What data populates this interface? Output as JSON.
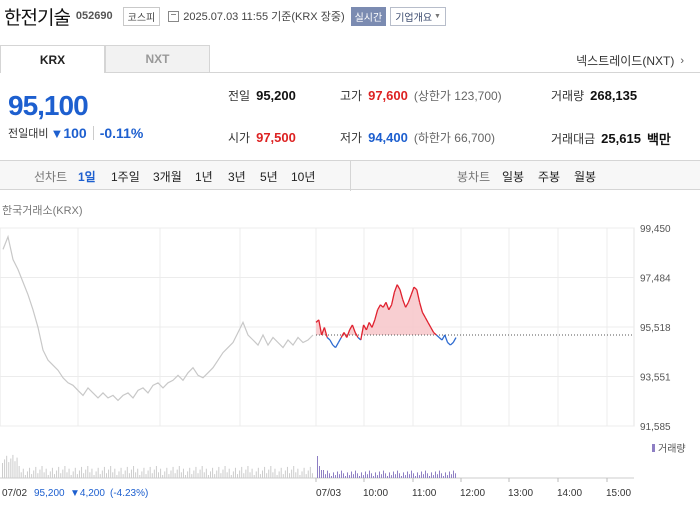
{
  "header": {
    "company_name": "한전기술",
    "stock_code": "052690",
    "market_badge": "코스피",
    "as_of": "2025.07.03 11:55 기준(KRX 장중)",
    "realtime_badge": "실시간",
    "company_overview_label": "기업개요"
  },
  "tabs": {
    "krx": "KRX",
    "nxt": "NXT",
    "nextrade_link": "넥스트레이드(NXT)"
  },
  "quote": {
    "price": "95,100",
    "change_label": "전일대비",
    "change_value": "100",
    "change_pct": "-0.11%",
    "prev_close_label": "전일",
    "prev_close": "95,200",
    "open_label": "시가",
    "open": "97,500",
    "high_label": "고가",
    "high": "97,600",
    "upper_limit": "(상한가 123,700)",
    "low_label": "저가",
    "low": "94,400",
    "lower_limit": "(하한가 66,700)",
    "volume_label": "거래량",
    "volume": "268,135",
    "value_label": "거래대금",
    "value": "25,615",
    "value_unit": "백만"
  },
  "period_bar": {
    "line_label": "선차트",
    "line_periods": [
      "1일",
      "1주일",
      "3개월",
      "1년",
      "3년",
      "5년",
      "10년"
    ],
    "candle_label": "봉차트",
    "candle_periods": [
      "일봉",
      "주봉",
      "월봉"
    ]
  },
  "chart_data": {
    "type": "line",
    "source_label": "한국거래소(KRX)",
    "y_ticks": [
      "99,450",
      "97,484",
      "95,518",
      "93,551",
      "91,585"
    ],
    "ylim": [
      91585,
      99450
    ],
    "x_ticks_today": [
      "07/03",
      "10:00",
      "11:00",
      "12:00",
      "13:00",
      "14:00",
      "15:00"
    ],
    "prev_day_label": "07/02",
    "prev_day_summary": {
      "close": "95,200",
      "change": "▼4,200",
      "pct": "(-4.23%)"
    },
    "volume_legend": "거래량",
    "reference_price": 95200,
    "colors": {
      "prev_day_line": "#c8c8c8",
      "above_ref": "#e0202e",
      "below_ref": "#2d6bd0",
      "area_above": "#f7c9cc",
      "volume_today": "#8e7fc4",
      "volume_prev": "#cccccc"
    },
    "prev_day_series": [
      [
        0,
        98600
      ],
      [
        1,
        99100
      ],
      [
        2,
        98200
      ],
      [
        3,
        97800
      ],
      [
        4,
        97300
      ],
      [
        5,
        96800
      ],
      [
        6,
        96200
      ],
      [
        7,
        95500
      ],
      [
        8,
        94600
      ],
      [
        9,
        94200
      ],
      [
        10,
        94000
      ],
      [
        11,
        93800
      ],
      [
        12,
        93500
      ],
      [
        13,
        93300
      ],
      [
        14,
        93200
      ],
      [
        15,
        93000
      ],
      [
        16,
        92800
      ],
      [
        17,
        93100
      ],
      [
        18,
        92900
      ],
      [
        19,
        92700
      ],
      [
        20,
        92900
      ],
      [
        21,
        92700
      ],
      [
        22,
        92800
      ],
      [
        23,
        92600
      ],
      [
        24,
        92800
      ],
      [
        25,
        92900
      ],
      [
        26,
        92700
      ],
      [
        27,
        93000
      ],
      [
        28,
        93100
      ],
      [
        29,
        92900
      ],
      [
        30,
        93200
      ],
      [
        31,
        93300
      ],
      [
        32,
        93100
      ],
      [
        33,
        93300
      ],
      [
        34,
        93400
      ],
      [
        35,
        93600
      ],
      [
        36,
        93400
      ],
      [
        37,
        93700
      ],
      [
        38,
        93900
      ],
      [
        39,
        93600
      ],
      [
        40,
        93500
      ],
      [
        41,
        93700
      ],
      [
        42,
        93900
      ],
      [
        43,
        94200
      ],
      [
        44,
        94500
      ],
      [
        45,
        94700
      ],
      [
        46,
        94900
      ],
      [
        47,
        95300
      ],
      [
        48,
        95700
      ],
      [
        49,
        95200
      ],
      [
        50,
        95000
      ],
      [
        51,
        94800
      ],
      [
        52,
        95200
      ],
      [
        53,
        94800
      ],
      [
        54,
        95100
      ],
      [
        55,
        94900
      ],
      [
        56,
        94700
      ],
      [
        57,
        95000
      ],
      [
        58,
        94800
      ],
      [
        59,
        95100
      ],
      [
        60,
        94900
      ],
      [
        61,
        95000
      ],
      [
        62,
        95200
      ]
    ],
    "today_series": [
      [
        0,
        95700
      ],
      [
        1,
        95800
      ],
      [
        2,
        95200
      ],
      [
        3,
        95500
      ],
      [
        4,
        95100
      ],
      [
        5,
        95000
      ],
      [
        6,
        94800
      ],
      [
        7,
        94700
      ],
      [
        8,
        94900
      ],
      [
        9,
        95100
      ],
      [
        10,
        95300
      ],
      [
        11,
        95100
      ],
      [
        12,
        95400
      ],
      [
        13,
        95600
      ],
      [
        14,
        95300
      ],
      [
        15,
        95100
      ],
      [
        16,
        95000
      ],
      [
        17,
        95600
      ],
      [
        18,
        95400
      ],
      [
        19,
        95700
      ],
      [
        20,
        95500
      ],
      [
        21,
        95800
      ],
      [
        22,
        96200
      ],
      [
        23,
        96400
      ],
      [
        24,
        96300
      ],
      [
        25,
        96500
      ],
      [
        26,
        96200
      ],
      [
        27,
        96400
      ],
      [
        28,
        96900
      ],
      [
        29,
        97200
      ],
      [
        30,
        97000
      ],
      [
        31,
        96600
      ],
      [
        32,
        96300
      ],
      [
        33,
        96500
      ],
      [
        34,
        96800
      ],
      [
        35,
        97100
      ],
      [
        36,
        97000
      ],
      [
        37,
        96500
      ],
      [
        38,
        96100
      ],
      [
        39,
        95900
      ],
      [
        40,
        95700
      ],
      [
        41,
        95500
      ],
      [
        42,
        95300
      ],
      [
        43,
        95200
      ],
      [
        44,
        95100
      ],
      [
        45,
        95000
      ],
      [
        46,
        95200
      ],
      [
        47,
        94900
      ],
      [
        48,
        94800
      ],
      [
        49,
        94900
      ],
      [
        50,
        95100
      ]
    ]
  }
}
